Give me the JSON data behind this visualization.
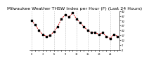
{
  "title": "Milwaukee Weather THSW Index per Hour (F) (Last 24 Hours)",
  "hours": [
    0,
    1,
    2,
    3,
    4,
    5,
    6,
    7,
    8,
    9,
    10,
    11,
    12,
    13,
    14,
    15,
    16,
    17,
    18,
    19,
    20,
    21,
    22,
    23
  ],
  "values": [
    32,
    28,
    22,
    18,
    16,
    17,
    21,
    26,
    34,
    38,
    36,
    40,
    34,
    30,
    26,
    22,
    20,
    20,
    18,
    20,
    16,
    14,
    18,
    16
  ],
  "ylim": [
    2,
    42
  ],
  "ytick_vals": [
    2,
    7,
    12,
    17,
    22,
    27,
    32,
    37,
    42
  ],
  "bg_color": "#ffffff",
  "line_color": "#cc0000",
  "marker_color": "#000000",
  "grid_color": "#888888",
  "title_color": "#000000",
  "title_fontsize": 4.5
}
